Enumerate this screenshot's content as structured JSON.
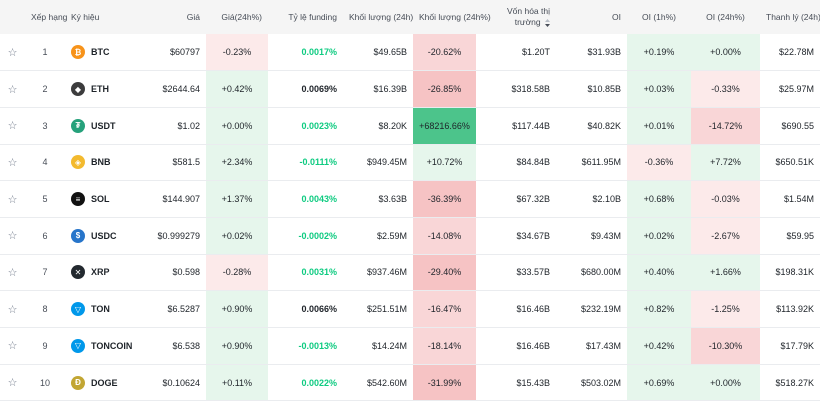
{
  "headers": {
    "rank": "Xếp hạng",
    "symbol": "Ký hiệu",
    "price": "Giá",
    "change24h": "Giá(24h%)",
    "funding": "Tỷ lệ funding",
    "volume": "Khối lượng (24h)",
    "volume_change": "Khối lượng (24h%)",
    "mcap": "Vốn hóa thị trường",
    "oi": "OI",
    "oi_1h": "OI (1h%)",
    "oi_24h": "OI (24h%)",
    "liq": "Thanh lý (24h)"
  },
  "rows": [
    {
      "rank": "1",
      "symbol": "BTC",
      "icon": "btc-logo-icon",
      "logo_color": "#f7931a",
      "logo_char": "₿",
      "price": "$60797",
      "change": "-0.23%",
      "funding": "0.0017%",
      "volume": "$49.65B",
      "vol_change": "-20.62%",
      "mcap": "$1.20T",
      "oi": "$31.93B",
      "oi1h": "+0.19%",
      "oi24h": "+0.00%",
      "liq": "$22.78M"
    },
    {
      "rank": "2",
      "symbol": "ETH",
      "icon": "eth-logo-icon",
      "logo_color": "#3c3c3d",
      "logo_char": "◆",
      "price": "$2644.64",
      "change": "+0.42%",
      "funding": "0.0069%",
      "volume": "$16.39B",
      "vol_change": "-26.85%",
      "mcap": "$318.58B",
      "oi": "$10.85B",
      "oi1h": "+0.03%",
      "oi24h": "-0.33%",
      "liq": "$25.97M"
    },
    {
      "rank": "3",
      "symbol": "USDT",
      "icon": "usdt-logo-icon",
      "logo_color": "#26a17b",
      "logo_char": "₮",
      "price": "$1.02",
      "change": "+0.00%",
      "funding": "0.0023%",
      "volume": "$8.20K",
      "vol_change": "+68216.66%",
      "mcap": "$117.44B",
      "oi": "$40.82K",
      "oi1h": "+0.01%",
      "oi24h": "-14.72%",
      "liq": "$690.55"
    },
    {
      "rank": "4",
      "symbol": "BNB",
      "icon": "bnb-logo-icon",
      "logo_color": "#f3ba2f",
      "logo_char": "◈",
      "price": "$581.5",
      "change": "+2.34%",
      "funding": "-0.0111%",
      "volume": "$949.45M",
      "vol_change": "+10.72%",
      "mcap": "$84.84B",
      "oi": "$611.95M",
      "oi1h": "-0.36%",
      "oi24h": "+7.72%",
      "liq": "$650.51K"
    },
    {
      "rank": "5",
      "symbol": "SOL",
      "icon": "sol-logo-icon",
      "logo_color": "#111111",
      "logo_char": "≡",
      "price": "$144.907",
      "change": "+1.37%",
      "funding": "0.0043%",
      "volume": "$3.63B",
      "vol_change": "-36.39%",
      "mcap": "$67.32B",
      "oi": "$2.10B",
      "oi1h": "+0.68%",
      "oi24h": "-0.03%",
      "liq": "$1.54M"
    },
    {
      "rank": "6",
      "symbol": "USDC",
      "icon": "usdc-logo-icon",
      "logo_color": "#2775ca",
      "logo_char": "$",
      "price": "$0.999279",
      "change": "+0.02%",
      "funding": "-0.0002%",
      "volume": "$2.59M",
      "vol_change": "-14.08%",
      "mcap": "$34.67B",
      "oi": "$9.43M",
      "oi1h": "+0.02%",
      "oi24h": "-2.67%",
      "liq": "$59.95"
    },
    {
      "rank": "7",
      "symbol": "XRP",
      "icon": "xrp-logo-icon",
      "logo_color": "#23292f",
      "logo_char": "✕",
      "price": "$0.598",
      "change": "-0.28%",
      "funding": "0.0031%",
      "volume": "$937.46M",
      "vol_change": "-29.40%",
      "mcap": "$33.57B",
      "oi": "$680.00M",
      "oi1h": "+0.40%",
      "oi24h": "+1.66%",
      "liq": "$198.31K"
    },
    {
      "rank": "8",
      "symbol": "TON",
      "icon": "ton-logo-icon",
      "logo_color": "#0098ea",
      "logo_char": "▽",
      "price": "$6.5287",
      "change": "+0.90%",
      "funding": "0.0066%",
      "volume": "$251.51M",
      "vol_change": "-16.47%",
      "mcap": "$16.46B",
      "oi": "$232.19M",
      "oi1h": "+0.82%",
      "oi24h": "-1.25%",
      "liq": "$113.92K"
    },
    {
      "rank": "9",
      "symbol": "TONCOIN",
      "icon": "toncoin-logo-icon",
      "logo_color": "#0098ea",
      "logo_char": "▽",
      "price": "$6.538",
      "change": "+0.90%",
      "funding": "-0.0013%",
      "volume": "$14.24M",
      "vol_change": "-18.14%",
      "mcap": "$16.46B",
      "oi": "$17.43M",
      "oi1h": "+0.42%",
      "oi24h": "-10.30%",
      "liq": "$17.79K"
    },
    {
      "rank": "10",
      "symbol": "DOGE",
      "icon": "doge-logo-icon",
      "logo_color": "#c2a633",
      "logo_char": "Ð",
      "price": "$0.10624",
      "change": "+0.11%",
      "funding": "0.0022%",
      "volume": "$542.60M",
      "vol_change": "-31.99%",
      "mcap": "$15.43B",
      "oi": "$503.02M",
      "oi1h": "+0.69%",
      "oi24h": "+0.00%",
      "liq": "$518.27K"
    }
  ],
  "star_glyph": "☆"
}
